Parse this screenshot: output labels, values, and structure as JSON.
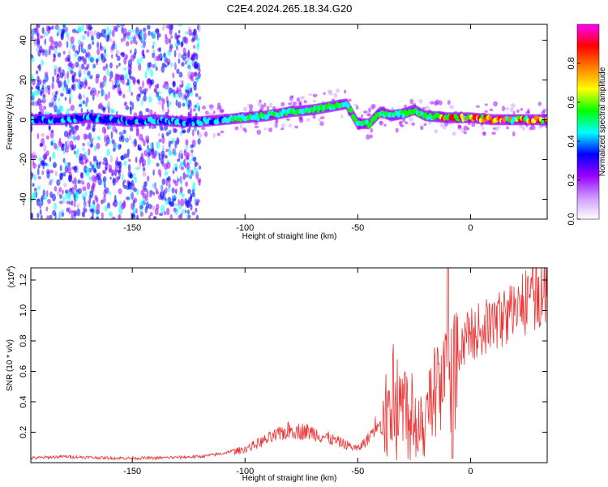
{
  "title": "C2E4.2024.265.18.34.G20",
  "chart_data": [
    {
      "type": "heatmap",
      "xlabel": "Height of straight line (km)",
      "ylabel": "Frequency (Hz)",
      "xlim": [
        -195,
        34
      ],
      "ylim": [
        -50,
        48
      ],
      "xticks": [
        -150,
        -100,
        -50,
        0
      ],
      "yticks": [
        -40,
        -20,
        0,
        20,
        40
      ],
      "colorbar": {
        "label": "Normalized spectral amplitude",
        "range": [
          0,
          1
        ],
        "ticks": [
          "0.0",
          "0.2",
          "0.4",
          "0.6",
          "0.8"
        ],
        "colors": [
          "#ffffff",
          "#cc99ff",
          "#9900ff",
          "#0000ff",
          "#00ffff",
          "#00ff00",
          "#ffff00",
          "#ff8000",
          "#ff0000",
          "#ff00ff"
        ]
      },
      "ridge": {
        "x": [
          -195,
          -180,
          -170,
          -160,
          -150,
          -140,
          -130,
          -120,
          -110,
          -100,
          -90,
          -80,
          -70,
          -60,
          -55,
          -50,
          -45,
          -40,
          -35,
          -30,
          -25,
          -20,
          -10,
          0,
          10,
          20,
          34
        ],
        "y": [
          0,
          0,
          1,
          0,
          -1,
          0,
          -1,
          -1,
          0,
          1,
          2,
          4,
          5,
          7,
          8,
          -2,
          -2,
          4,
          2,
          3,
          5,
          2,
          1,
          1,
          0,
          0,
          0
        ]
      }
    },
    {
      "type": "line",
      "xlabel": "Height of straight line (km)",
      "ylabel": "SNR (10 * v/v)",
      "scale_label": "(x10",
      "scale_exp": "4",
      "xlim": [
        -195,
        34
      ],
      "ylim": [
        0,
        1.28
      ],
      "xticks": [
        -150,
        -100,
        -50,
        0
      ],
      "yticks": [
        "0.2",
        "0.4",
        "0.6",
        "0.8",
        "1.0",
        "1.2"
      ],
      "series_color": "#ee3333",
      "envelope": {
        "x": [
          -195,
          -180,
          -160,
          -140,
          -120,
          -110,
          -100,
          -90,
          -80,
          -70,
          -60,
          -50,
          -45,
          -40,
          -35,
          -30,
          -25,
          -20,
          -15,
          -10,
          -5,
          0,
          10,
          20,
          34
        ],
        "y": [
          0.03,
          0.04,
          0.03,
          0.03,
          0.04,
          0.06,
          0.1,
          0.17,
          0.24,
          0.22,
          0.16,
          0.1,
          0.18,
          0.35,
          0.6,
          0.55,
          0.48,
          0.4,
          0.7,
          0.78,
          0.82,
          0.88,
          0.95,
          1.05,
          1.2
        ]
      }
    }
  ]
}
